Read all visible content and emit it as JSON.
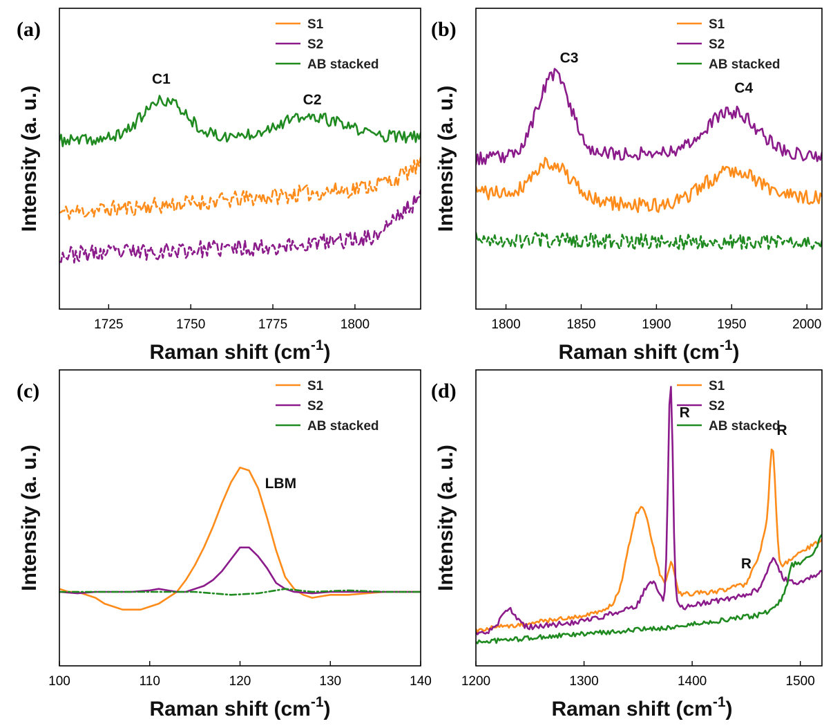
{
  "colors": {
    "S1": "#ff8c1a",
    "S2": "#8b1a8b",
    "AB": "#1f8a1f"
  },
  "chart_data": [
    {
      "type": "line",
      "panel": "(a)",
      "xlabel": "Raman shift (cm",
      "xlabel_sup": "-1",
      "xlabel_close": ")",
      "ylabel": "Intensity (a. u.)",
      "xlim": [
        1710,
        1820
      ],
      "ylim": [
        0,
        1
      ],
      "xticks": [
        1725,
        1750,
        1775,
        1800
      ],
      "legend": [
        "S1",
        "S2",
        "AB stacked"
      ],
      "series": [
        {
          "name": "S1",
          "style": "dashed",
          "seed": 11,
          "noise": 0.028,
          "baseline": [
            [
              1710,
              0.32
            ],
            [
              1760,
              0.36
            ],
            [
              1800,
              0.4
            ],
            [
              1812,
              0.43
            ],
            [
              1820,
              0.48
            ]
          ],
          "peaks": []
        },
        {
          "name": "S2",
          "style": "dashed",
          "seed": 23,
          "noise": 0.028,
          "baseline": [
            [
              1710,
              0.18
            ],
            [
              1780,
              0.21
            ],
            [
              1806,
              0.24
            ],
            [
              1812,
              0.3
            ],
            [
              1820,
              0.37
            ]
          ],
          "peaks": []
        },
        {
          "name": "AB stacked",
          "style": "solid",
          "seed": 37,
          "noise": 0.02,
          "baseline": [
            [
              1710,
              0.56
            ],
            [
              1820,
              0.57
            ]
          ],
          "peaks": [
            {
              "center": 1742,
              "height": 0.13,
              "width": 7
            },
            {
              "center": 1786,
              "height": 0.07,
              "width": 11
            }
          ]
        }
      ],
      "annotations": [
        {
          "text": "C1",
          "x": 1741,
          "y": 0.75
        },
        {
          "text": "C2",
          "x": 1787,
          "y": 0.68
        }
      ]
    },
    {
      "type": "line",
      "panel": "(b)",
      "xlabel": "Raman shift (cm",
      "xlabel_sup": "-1",
      "xlabel_close": ")",
      "ylabel": "Intensity (a. u.)",
      "xlim": [
        1780,
        2010
      ],
      "ylim": [
        0,
        1
      ],
      "xticks": [
        1800,
        1850,
        1900,
        1950,
        2000
      ],
      "legend": [
        "S1",
        "S2",
        "AB stacked"
      ],
      "series": [
        {
          "name": "S1",
          "style": "solid",
          "seed": 41,
          "noise": 0.025,
          "baseline": [
            [
              1780,
              0.39
            ],
            [
              1900,
              0.34
            ],
            [
              2010,
              0.37
            ]
          ],
          "peaks": [
            {
              "center": 1830,
              "height": 0.12,
              "width": 12
            },
            {
              "center": 1950,
              "height": 0.11,
              "width": 18
            }
          ]
        },
        {
          "name": "S2",
          "style": "solid",
          "seed": 53,
          "noise": 0.022,
          "baseline": [
            [
              1780,
              0.5
            ],
            [
              1900,
              0.52
            ],
            [
              2010,
              0.51
            ]
          ],
          "peaks": [
            {
              "center": 1832,
              "height": 0.27,
              "width": 11
            },
            {
              "center": 1950,
              "height": 0.14,
              "width": 17
            }
          ]
        },
        {
          "name": "AB stacked",
          "style": "dashed",
          "seed": 67,
          "noise": 0.025,
          "baseline": [
            [
              1780,
              0.23
            ],
            [
              2010,
              0.22
            ]
          ],
          "peaks": []
        }
      ],
      "annotations": [
        {
          "text": "C3",
          "x": 1842,
          "y": 0.82
        },
        {
          "text": "C4",
          "x": 1958,
          "y": 0.72
        }
      ]
    },
    {
      "type": "line",
      "panel": "(c)",
      "xlabel": "Raman shift (cm",
      "xlabel_sup": "-1",
      "xlabel_close": ")",
      "ylabel": "Intensity (a. u.)",
      "xlim": [
        100,
        140
      ],
      "ylim": [
        0,
        1
      ],
      "xticks": [
        100,
        110,
        120,
        130,
        140
      ],
      "legend": [
        "S1",
        "S2",
        "AB stacked"
      ],
      "series": [
        {
          "name": "S1",
          "style": "solid",
          "x": [
            100,
            101,
            102,
            103,
            104,
            105,
            106,
            107,
            108,
            109,
            110,
            111,
            112,
            113,
            114,
            115,
            116,
            117,
            118,
            119,
            120,
            121,
            122,
            123,
            124,
            125,
            126,
            127,
            128,
            129,
            130,
            132,
            134,
            136,
            138,
            140
          ],
          "y": [
            0.26,
            0.25,
            0.25,
            0.24,
            0.23,
            0.21,
            0.2,
            0.19,
            0.19,
            0.19,
            0.2,
            0.21,
            0.23,
            0.25,
            0.29,
            0.34,
            0.4,
            0.47,
            0.55,
            0.62,
            0.67,
            0.66,
            0.6,
            0.5,
            0.39,
            0.3,
            0.26,
            0.24,
            0.23,
            0.235,
            0.24,
            0.24,
            0.245,
            0.25,
            0.25,
            0.25
          ]
        },
        {
          "name": "S2",
          "style": "solid",
          "x": [
            100,
            102,
            104,
            106,
            108,
            110,
            111,
            112,
            113,
            114,
            115,
            116,
            117,
            118,
            119,
            120,
            121,
            122,
            123,
            124,
            125,
            126,
            128,
            130,
            135,
            140
          ],
          "y": [
            0.25,
            0.245,
            0.25,
            0.25,
            0.25,
            0.255,
            0.26,
            0.255,
            0.25,
            0.25,
            0.26,
            0.27,
            0.29,
            0.32,
            0.36,
            0.4,
            0.4,
            0.37,
            0.33,
            0.28,
            0.26,
            0.25,
            0.245,
            0.25,
            0.25,
            0.25
          ]
        },
        {
          "name": "AB stacked",
          "style": "dashdot",
          "x": [
            100,
            105,
            110,
            115,
            119,
            122,
            125,
            128,
            132,
            136,
            140
          ],
          "y": [
            0.25,
            0.25,
            0.25,
            0.25,
            0.24,
            0.245,
            0.26,
            0.25,
            0.255,
            0.25,
            0.25
          ]
        }
      ],
      "annotations": [
        {
          "text": "LBM",
          "x": 124.5,
          "y": 0.6
        }
      ]
    },
    {
      "type": "line",
      "panel": "(d)",
      "xlabel": "Raman shift (cm",
      "xlabel_sup": "-1",
      "xlabel_close": ")",
      "ylabel": "Intensity (a. u.)",
      "xlim": [
        1200,
        1520
      ],
      "ylim": [
        0,
        1
      ],
      "xticks": [
        1200,
        1300,
        1400,
        1500
      ],
      "legend": [
        "S1",
        "S2",
        "AB stacked"
      ],
      "series": [
        {
          "name": "S1",
          "style": "solid",
          "seed": 71,
          "noise": 0.008,
          "baseline": [
            [
              1200,
              0.12
            ],
            [
              1300,
              0.17
            ],
            [
              1340,
              0.2
            ],
            [
              1380,
              0.24
            ],
            [
              1420,
              0.25
            ],
            [
              1455,
              0.28
            ],
            [
              1480,
              0.33
            ],
            [
              1520,
              0.43
            ]
          ],
          "peaks": [
            {
              "center": 1352,
              "height": 0.32,
              "width": 11
            },
            {
              "center": 1381,
              "height": 0.1,
              "width": 3
            },
            {
              "center": 1458,
              "height": 0.05,
              "width": 4
            },
            {
              "center": 1474,
              "height": 0.42,
              "width": 3
            },
            {
              "center": 1466,
              "height": 0.12,
              "width": 3
            }
          ]
        },
        {
          "name": "S2",
          "style": "solid",
          "seed": 83,
          "noise": 0.009,
          "baseline": [
            [
              1200,
              0.11
            ],
            [
              1300,
              0.15
            ],
            [
              1340,
              0.19
            ],
            [
              1395,
              0.2
            ],
            [
              1450,
              0.24
            ],
            [
              1480,
              0.29
            ],
            [
              1500,
              0.28
            ],
            [
              1520,
              0.32
            ]
          ],
          "peaks": [
            {
              "center": 1230,
              "height": 0.07,
              "width": 7
            },
            {
              "center": 1362,
              "height": 0.09,
              "width": 7
            },
            {
              "center": 1380,
              "height": 0.76,
              "width": 2.2
            },
            {
              "center": 1474,
              "height": 0.08,
              "width": 5
            }
          ]
        },
        {
          "name": "AB stacked",
          "style": "solid",
          "seed": 97,
          "noise": 0.008,
          "baseline": [
            [
              1200,
              0.08
            ],
            [
              1380,
              0.13
            ],
            [
              1460,
              0.17
            ],
            [
              1475,
              0.19
            ],
            [
              1485,
              0.24
            ],
            [
              1492,
              0.34
            ],
            [
              1500,
              0.35
            ],
            [
              1510,
              0.37
            ],
            [
              1520,
              0.44
            ]
          ],
          "peaks": []
        }
      ],
      "annotations": [
        {
          "text": "R",
          "x": 1393,
          "y": 0.84
        },
        {
          "text": "R",
          "x": 1483,
          "y": 0.78
        },
        {
          "text": "R",
          "x": 1450,
          "y": 0.33
        }
      ]
    }
  ]
}
